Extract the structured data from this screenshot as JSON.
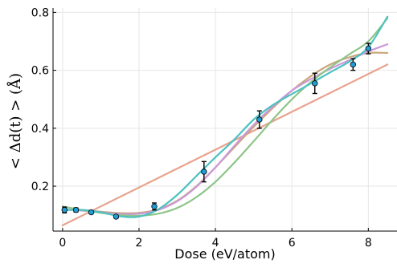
{
  "chart_data": {
    "type": "scatter",
    "xlabel": "Dose (eV/atom)",
    "ylabel": "< Δd(t) > (Å)",
    "xlim": [
      -0.25,
      8.75
    ],
    "ylim": [
      0.045,
      0.815
    ],
    "x_ticks": [
      0,
      2,
      4,
      6,
      8
    ],
    "y_ticks": [
      0.2,
      0.4,
      0.6,
      0.8
    ],
    "x_tick_labels": [
      "0",
      "2",
      "4",
      "6",
      "8"
    ],
    "y_tick_labels": [
      "0.2",
      "0.4",
      "0.6",
      "0.8"
    ],
    "grid": true,
    "legend": "none",
    "points": {
      "x": [
        0.05,
        0.35,
        0.75,
        1.4,
        2.4,
        3.7,
        5.15,
        6.6,
        7.6,
        8.0
      ],
      "y": [
        0.118,
        0.118,
        0.11,
        0.095,
        0.13,
        0.25,
        0.43,
        0.555,
        0.62,
        0.675
      ],
      "err": [
        0.01,
        0.007,
        0.005,
        0.005,
        0.012,
        0.035,
        0.03,
        0.035,
        0.02,
        0.018
      ],
      "color": "#1f9ed6"
    },
    "series": [
      {
        "type": "line",
        "color": "#e8a48f",
        "x": [
          0,
          8.5
        ],
        "y": [
          0.065,
          0.62
        ]
      },
      {
        "type": "line",
        "color": "#c9a77a",
        "x": [
          0,
          0.5,
          1,
          1.5,
          2,
          2.5,
          3,
          3.5,
          4,
          4.5,
          5,
          5.5,
          6,
          6.5,
          7,
          7.5,
          8,
          8.5
        ],
        "y": [
          0.118,
          0.117,
          0.112,
          0.107,
          0.108,
          0.12,
          0.15,
          0.2,
          0.265,
          0.335,
          0.405,
          0.47,
          0.53,
          0.58,
          0.62,
          0.645,
          0.66,
          0.66
        ]
      },
      {
        "type": "line",
        "color": "#cc99d9",
        "x": [
          0,
          0.5,
          1,
          1.5,
          2,
          2.5,
          3,
          3.5,
          4,
          4.5,
          5,
          5.5,
          6,
          6.5,
          7,
          7.5,
          8,
          8.5
        ],
        "y": [
          0.12,
          0.116,
          0.11,
          0.104,
          0.105,
          0.118,
          0.148,
          0.198,
          0.265,
          0.34,
          0.412,
          0.475,
          0.53,
          0.57,
          0.605,
          0.635,
          0.665,
          0.69
        ]
      },
      {
        "type": "line",
        "color": "#8ec488",
        "x": [
          0,
          0.5,
          1,
          1.5,
          2,
          2.5,
          3,
          3.5,
          4,
          4.5,
          5,
          5.5,
          6,
          6.5,
          7,
          7.5,
          8,
          8.5
        ],
        "y": [
          0.13,
          0.118,
          0.108,
          0.1,
          0.098,
          0.105,
          0.125,
          0.162,
          0.215,
          0.282,
          0.355,
          0.43,
          0.5,
          0.56,
          0.61,
          0.655,
          0.7,
          0.78
        ]
      },
      {
        "type": "line",
        "color": "#4dc2c1",
        "x": [
          0,
          0.5,
          1,
          1.5,
          2,
          2.5,
          3,
          3.5,
          4,
          4.5,
          5,
          5.5,
          6,
          6.5,
          7,
          7.5,
          8,
          8.5
        ],
        "y": [
          0.118,
          0.118,
          0.11,
          0.096,
          0.095,
          0.12,
          0.17,
          0.235,
          0.3,
          0.362,
          0.43,
          0.48,
          0.518,
          0.555,
          0.593,
          0.63,
          0.68,
          0.785
        ]
      }
    ]
  }
}
